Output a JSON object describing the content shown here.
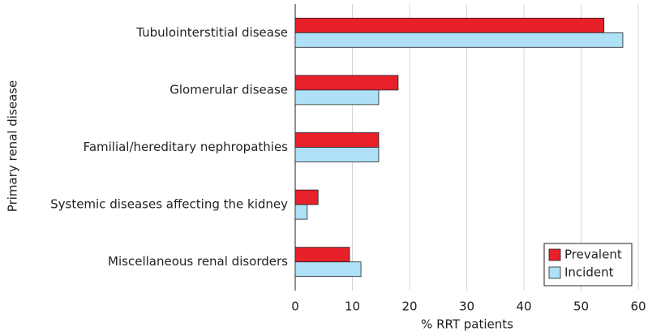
{
  "chart_data": {
    "type": "hbar",
    "x_label": "% RRT patients",
    "y_label": "Primary renal disease",
    "categories": [
      "Tubulointerstitial disease",
      "Glomerular disease",
      "Familial/hereditary nephropathies",
      "Systemic diseases affecting the kidney",
      "Miscellaneous renal disorders"
    ],
    "series": [
      {
        "name": "Prevalent",
        "color": "#e8202a",
        "values": [
          54,
          18,
          14.6,
          4,
          9.5
        ]
      },
      {
        "name": "Incident",
        "color": "#aee0f7",
        "values": [
          57.3,
          14.6,
          14.6,
          2.1,
          11.5
        ]
      }
    ],
    "xlim": [
      0,
      60
    ],
    "xticks": [
      0,
      10,
      20,
      30,
      40,
      50,
      60
    ],
    "grid": true,
    "legend": "bottom-right"
  }
}
